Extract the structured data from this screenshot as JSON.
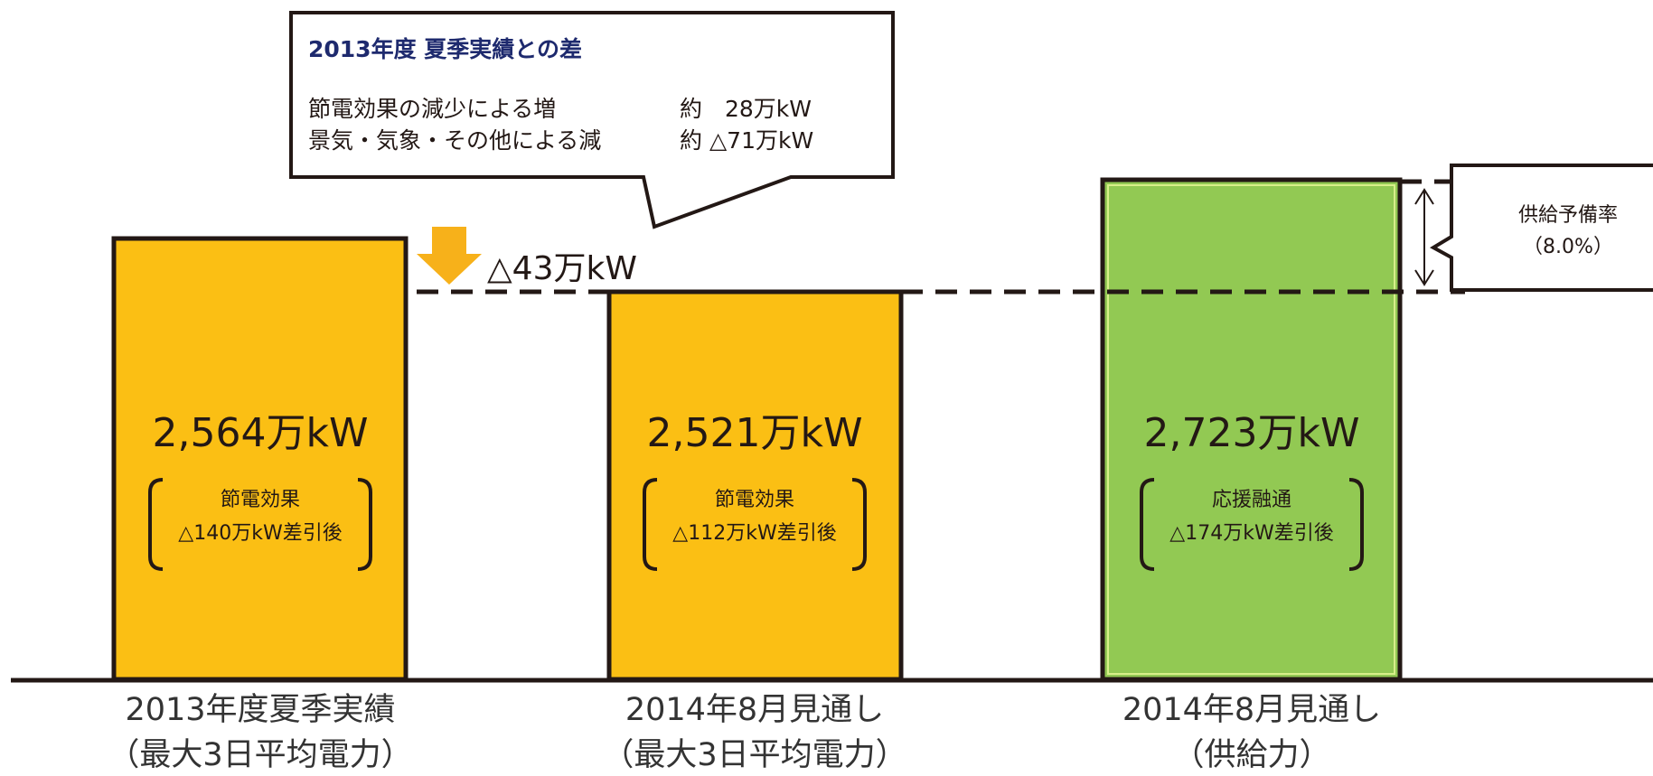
{
  "callout": {
    "title": "2013年度 夏季実績との差",
    "rows": [
      [
        "節電効果の減少による増",
        "約　28万kW"
      ],
      [
        "景気・気象・その他による減",
        "約 △71万kW"
      ]
    ]
  },
  "difference": "△43万kW",
  "reserve": {
    "label": "供給予備率",
    "value": "（8.0%）"
  },
  "bars": [
    {
      "value": "2,564万kW",
      "note": [
        "節電効果",
        "△140万kW差引後"
      ],
      "category": [
        "2013年度夏季実績",
        "（最大3日平均電力）"
      ]
    },
    {
      "value": "2,521万kW",
      "note": [
        "節電効果",
        "△112万kW差引後"
      ],
      "category": [
        "2014年8月見通し",
        "（最大3日平均電力）"
      ]
    },
    {
      "value": "2,723万kW",
      "note": [
        "応援融通",
        "△174万kW差引後"
      ],
      "category": [
        "2014年8月見通し",
        "（供給力）"
      ]
    }
  ]
}
